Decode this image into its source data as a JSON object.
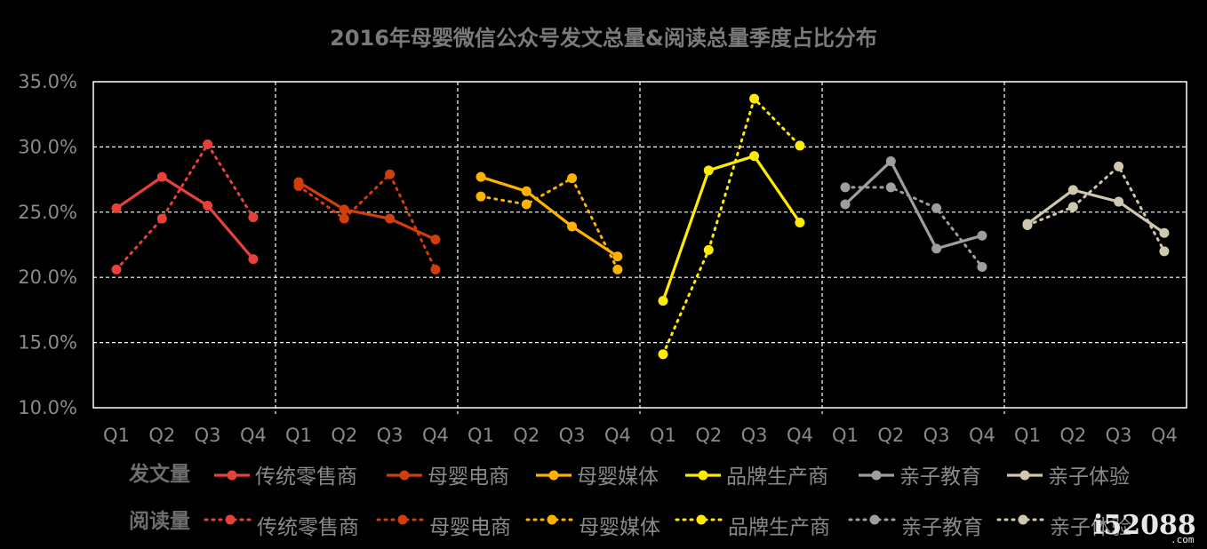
{
  "chart_data": {
    "type": "line",
    "title": "2016年母婴微信公众号发文总量&阅读总量季度占比分布",
    "ylim": [
      10,
      35
    ],
    "yticks": [
      "10.0%",
      "15.0%",
      "20.0%",
      "25.0%",
      "30.0%",
      "35.0%"
    ],
    "quarters": [
      "Q1",
      "Q2",
      "Q3",
      "Q4"
    ],
    "groups": [
      {
        "name": "传统零售商",
        "color": "#e8413a",
        "posts": [
          25.3,
          27.7,
          25.5,
          21.4
        ],
        "reads": [
          20.6,
          24.5,
          30.2,
          24.6
        ]
      },
      {
        "name": "母婴电商",
        "color": "#d13e0a",
        "posts": [
          27.3,
          25.2,
          24.5,
          22.9
        ],
        "reads": [
          27.0,
          24.5,
          27.9,
          20.6
        ]
      },
      {
        "name": "母婴媒体",
        "color": "#ffb300",
        "posts": [
          27.7,
          26.6,
          23.9,
          21.6
        ],
        "reads": [
          26.2,
          25.6,
          27.6,
          20.6
        ]
      },
      {
        "name": "品牌生产商",
        "color": "#ffeb00",
        "posts": [
          18.2,
          28.2,
          29.3,
          24.2
        ],
        "reads": [
          14.1,
          22.1,
          33.7,
          30.1
        ]
      },
      {
        "name": "亲子教育",
        "color": "#9e9e9e",
        "posts": [
          25.6,
          28.9,
          22.2,
          23.2
        ],
        "reads": [
          26.9,
          26.9,
          25.3,
          20.8
        ]
      },
      {
        "name": "亲子体验",
        "color": "#cfc7ae",
        "posts": [
          24.1,
          26.7,
          25.8,
          23.4
        ],
        "reads": [
          24.0,
          25.4,
          28.5,
          22.0
        ]
      }
    ],
    "legend": {
      "posts_label": "发文量",
      "reads_label": "阅读量"
    },
    "grid": true
  },
  "watermark": {
    "main": "i52088",
    "sub": ".com"
  }
}
